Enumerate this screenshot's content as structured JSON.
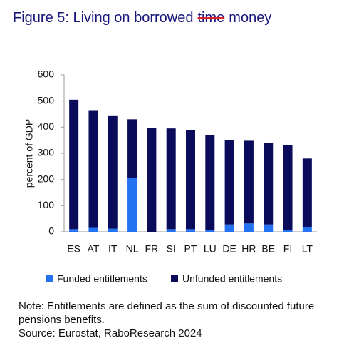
{
  "chart_data": {
    "type": "stacked_bar",
    "title": {
      "before": "Figure 5: Living on borrowed",
      "struck": "time",
      "after": "money"
    },
    "y_label": "percent of GDP",
    "categories": [
      "ES",
      "AT",
      "IT",
      "NL",
      "FR",
      "SI",
      "PT",
      "LU",
      "DE",
      "HR",
      "BE",
      "FI",
      "LT"
    ],
    "series": [
      {
        "name": "Funded entitlements",
        "color": "#2272f2",
        "values": [
          10,
          15,
          12,
          205,
          0,
          10,
          10,
          7,
          28,
          32,
          28,
          8,
          18
        ]
      },
      {
        "name": "Unfunded entitlements",
        "color": "#0b0b5c",
        "values": [
          495,
          450,
          433,
          225,
          397,
          385,
          380,
          363,
          322,
          316,
          312,
          322,
          262
        ]
      }
    ],
    "ylim": [
      0,
      600
    ],
    "yticks": [
      0,
      100,
      200,
      300,
      400,
      500,
      600
    ],
    "grid": false,
    "legend_position": "bottom",
    "note": "Note: Entitlements are defined as the sum of discounted future pensions benefits.",
    "source": "Source: Eurostat, RaboResearch 2024"
  }
}
